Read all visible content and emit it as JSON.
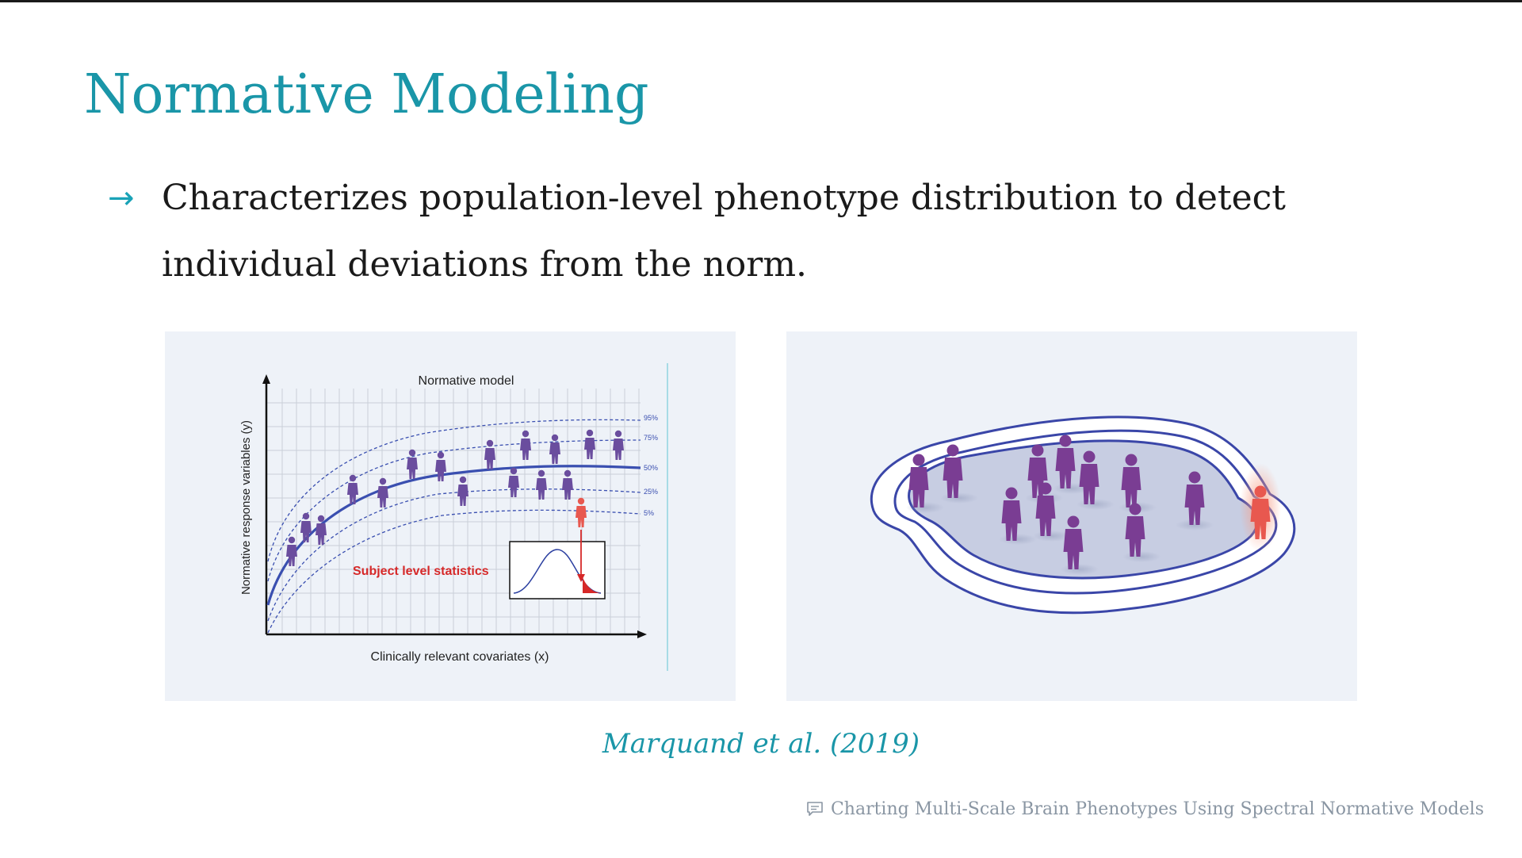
{
  "slide": {
    "title": "Normative Modeling",
    "bullet": {
      "icon": "arrow-right-icon",
      "text": "Characterizes population-level phenotype distribution to detect individual deviations from the norm."
    },
    "citation": "Marquand et al. (2019)",
    "footer": {
      "icon": "comment-icon",
      "text": "Charting Multi-Scale Brain Phenotypes Using Spectral Normative Models"
    }
  },
  "figure_left": {
    "title": "Normative model",
    "xlabel": "Clinically relevant covariates (x)",
    "ylabel": "Normative response variables (y)",
    "centile_labels": [
      "95%",
      "75%",
      "50%",
      "25%",
      "5%"
    ],
    "inset_label": "Subject level statistics"
  },
  "colors": {
    "accent": "#1a96a8",
    "curve": "#3a4fb0",
    "person": "#6a4d9e",
    "outlier": "#e8584f",
    "figure_bg": "#eef2f8"
  }
}
